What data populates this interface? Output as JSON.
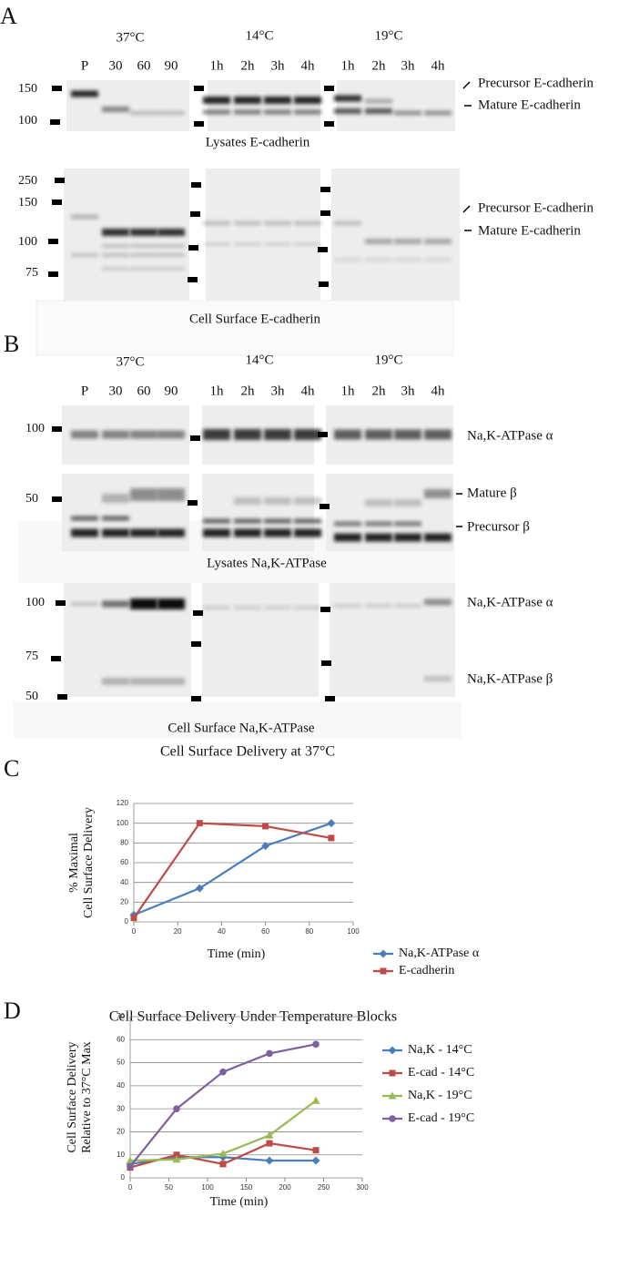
{
  "figure": {
    "panel_labels": [
      "A",
      "B",
      "C",
      "D"
    ],
    "A": {
      "temperatures": [
        "37°C",
        "14°C",
        "19°C"
      ],
      "lanes": [
        "P",
        "30",
        "60",
        "90",
        "1h",
        "2h",
        "3h",
        "4h",
        "1h",
        "2h",
        "3h",
        "4h"
      ],
      "lysate": {
        "markers": [
          "150",
          "100"
        ],
        "bands": [
          "Precursor E-cadherin",
          "Mature E-cadherin"
        ],
        "caption": "Lysates E-cadherin"
      },
      "surface": {
        "markers": [
          "250",
          "150",
          "100",
          "75"
        ],
        "bands": [
          "Precursor E-cadherin",
          "Mature E-cadherin"
        ],
        "caption": "Cell Surface E-cadherin"
      }
    },
    "B": {
      "temperatures": [
        "37°C",
        "14°C",
        "19°C"
      ],
      "lanes": [
        "P",
        "30",
        "60",
        "90",
        "1h",
        "2h",
        "3h",
        "4h",
        "1h",
        "2h",
        "3h",
        "4h"
      ],
      "lysate_alpha": {
        "markers": [
          "100"
        ],
        "bands": [
          "Na,K-ATPase α"
        ]
      },
      "lysate_beta": {
        "markers": [
          "50"
        ],
        "bands": [
          "Mature β",
          "Precursor β"
        ],
        "caption": "Lysates Na,K-ATPase"
      },
      "surface": {
        "markers": [
          "100",
          "75",
          "50"
        ],
        "bands": [
          "Na,K-ATPase α",
          "Na,K-ATPase β"
        ],
        "caption": "Cell Surface Na,K-ATPase"
      }
    }
  },
  "chart_data": [
    {
      "type": "line",
      "title": "Cell Surface Delivery at 37°C",
      "xlabel": "Time (min)",
      "ylabel": [
        "% Maximal",
        "Cell Surface Delivery"
      ],
      "x": [
        0,
        30,
        60,
        90
      ],
      "xlim": [
        0,
        100
      ],
      "xticks": [
        0,
        20,
        40,
        60,
        80,
        100
      ],
      "ylim": [
        0,
        120
      ],
      "yticks": [
        0,
        20,
        40,
        60,
        80,
        100,
        120
      ],
      "grid": true,
      "legend": "right",
      "series": [
        {
          "name": "Na,K-ATPase α",
          "color": "#4a7ebb",
          "marker": "diamond",
          "values": [
            7,
            34,
            77,
            100
          ]
        },
        {
          "name": "E-cadherin",
          "color": "#be4b48",
          "marker": "square",
          "values": [
            4,
            100,
            97,
            85
          ]
        }
      ]
    },
    {
      "type": "line",
      "title": "Cell Surface Delivery Under Temperature Blocks",
      "xlabel": "Time (min)",
      "ylabel": [
        "Cell Surface Delivery",
        "Relative to 37°C Max"
      ],
      "x": [
        0,
        60,
        120,
        180,
        240
      ],
      "xlim": [
        0,
        300
      ],
      "xticks": [
        0,
        50,
        100,
        150,
        200,
        250,
        300
      ],
      "ylim": [
        0,
        70
      ],
      "yticks": [
        0,
        10,
        20,
        30,
        40,
        50,
        60,
        70
      ],
      "grid": true,
      "legend": "right",
      "series": [
        {
          "name": "Na,K - 14°C",
          "color": "#4a7ebb",
          "marker": "diamond",
          "values": [
            6,
            9,
            9,
            7.5,
            7.5
          ]
        },
        {
          "name": "E-cad - 14°C",
          "color": "#be4b48",
          "marker": "square",
          "values": [
            4.5,
            10,
            6,
            15,
            12
          ]
        },
        {
          "name": "Na,K - 19°C",
          "color": "#98b954",
          "marker": "triangle",
          "values": [
            7.5,
            8,
            10.5,
            18.5,
            33.5
          ]
        },
        {
          "name": "E-cad - 19°C",
          "color": "#7d60a0",
          "marker": "circle",
          "values": [
            5,
            30,
            46,
            54,
            58
          ]
        }
      ]
    }
  ]
}
